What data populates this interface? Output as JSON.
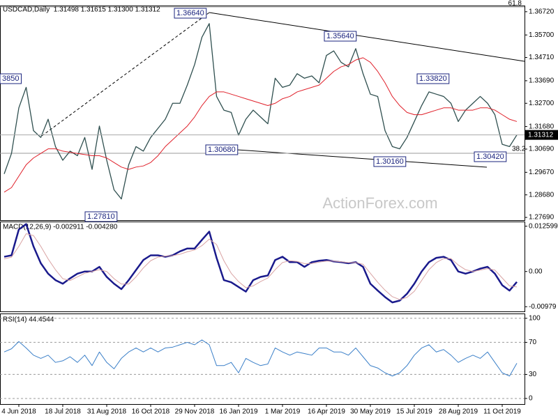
{
  "chart_data": [
    {
      "type": "line",
      "title": "USDCAD,Daily  1.31498 1.31615 1.31300 1.31312",
      "ylim": [
        1.2757,
        1.3699
      ],
      "yticks": [
        {
          "value": 1.3672,
          "label": "1.36720"
        },
        {
          "value": 1.357,
          "label": "1.35700"
        },
        {
          "value": 1.3471,
          "label": "1.34710"
        },
        {
          "value": 1.3369,
          "label": "1.33690"
        },
        {
          "value": 1.327,
          "label": "1.32700"
        },
        {
          "value": 1.3168,
          "label": "1.31680"
        },
        {
          "value": 1.3069,
          "label": "1.30690"
        },
        {
          "value": 1.2967,
          "label": "1.29670"
        },
        {
          "value": 1.2868,
          "label": "1.28680"
        },
        {
          "value": 1.2769,
          "label": "1.27690"
        }
      ],
      "last_price": {
        "value": 1.31312,
        "label": "1.31312"
      },
      "annotations": [
        "1.36640",
        "1.35640",
        "1.33820",
        "3850",
        "1.30680",
        "1.30160",
        "1.30420",
        "1.27810"
      ],
      "fib_labels": [
        "61.8",
        "38.2"
      ],
      "watermark": "ActionForex.com",
      "series": [
        {
          "color": "#2f4f4f",
          "values": [
            1.296,
            1.305,
            1.325,
            1.334,
            1.315,
            1.312,
            1.32,
            1.308,
            1.302,
            1.306,
            1.304,
            1.312,
            1.298,
            1.317,
            1.302,
            1.289,
            1.285,
            1.3,
            1.308,
            1.306,
            1.312,
            1.316,
            1.32,
            1.327,
            1.327,
            1.335,
            1.344,
            1.356,
            1.362,
            1.33,
            1.324,
            1.323,
            1.313,
            1.32,
            1.324,
            1.321,
            1.318,
            1.338,
            1.334,
            1.335,
            1.34,
            1.338,
            1.339,
            1.336,
            1.348,
            1.35,
            1.345,
            1.343,
            1.351,
            1.34,
            1.331,
            1.33,
            1.315,
            1.308,
            1.307,
            1.312,
            1.319,
            1.326,
            1.332,
            1.331,
            1.33,
            1.327,
            1.319,
            1.324,
            1.327,
            1.33,
            1.327,
            1.322,
            1.309,
            1.308,
            1.3131
          ]
        },
        {
          "color": "#e0202a",
          "values": [
            1.288,
            1.29,
            1.295,
            1.3,
            1.303,
            1.305,
            1.307,
            1.307,
            1.306,
            1.3055,
            1.305,
            1.3045,
            1.304,
            1.304,
            1.303,
            1.301,
            1.299,
            1.298,
            1.299,
            1.2995,
            1.301,
            1.304,
            1.308,
            1.311,
            1.314,
            1.317,
            1.321,
            1.326,
            1.33,
            1.332,
            1.332,
            1.331,
            1.33,
            1.329,
            1.328,
            1.327,
            1.326,
            1.327,
            1.329,
            1.33,
            1.332,
            1.333,
            1.334,
            1.335,
            1.338,
            1.341,
            1.343,
            1.344,
            1.346,
            1.347,
            1.345,
            1.341,
            1.336,
            1.33,
            1.326,
            1.323,
            1.322,
            1.322,
            1.323,
            1.324,
            1.325,
            1.325,
            1.324,
            1.324,
            1.324,
            1.325,
            1.325,
            1.324,
            1.322,
            1.32,
            1.319
          ]
        }
      ]
    },
    {
      "type": "line",
      "title": "MACD(12,26,9) -0.002911 -0.004280",
      "ylim": [
        -0.0111,
        0.0139
      ],
      "yticks": [
        0.012599,
        {
          "value": 0,
          "label": "0.00"
        },
        -0.00979
      ],
      "series": [
        {
          "color": "#1a1a8c",
          "values": [
            0.0041,
            0.0045,
            0.0117,
            0.0132,
            0.007,
            0.0023,
            -0.0006,
            -0.0024,
            -0.0034,
            -0.0019,
            -0.0006,
            0,
            0,
            0.0013,
            -0.0015,
            -0.0034,
            -0.0049,
            -0.0024,
            0.0004,
            0.0032,
            0.0045,
            0.0045,
            0.0041,
            0.0045,
            0.0056,
            0.0064,
            0.0064,
            0.0088,
            0.0111,
            0.0038,
            -0.0024,
            -0.003,
            -0.0043,
            -0.0056,
            -0.0024,
            -0.0015,
            -0.0011,
            0.0032,
            0.0041,
            0.0026,
            0.0026,
            0.0013,
            0.0026,
            0.003,
            0.0032,
            0.0028,
            0.0026,
            0.0023,
            0.0026,
            0.0013,
            -0.0034,
            -0.0053,
            -0.0071,
            -0.0086,
            -0.0081,
            -0.0062,
            -0.0034,
            0,
            0.0026,
            0.0038,
            0.0041,
            0.0032,
            0,
            -0.0006,
            0,
            0.0008,
            0.0013,
            -0.0006,
            -0.0038,
            -0.0053,
            -0.0029
          ]
        },
        {
          "color": "#d9a3a3",
          "values": [
            0.0035,
            0.004,
            0.007,
            0.0105,
            0.01,
            0.007,
            0.0035,
            0.0005,
            -0.002,
            -0.0025,
            -0.0015,
            -0.0005,
            0,
            0.0005,
            0,
            -0.002,
            -0.0035,
            -0.0035,
            -0.0015,
            0.001,
            0.003,
            0.004,
            0.0043,
            0.0044,
            0.0048,
            0.0055,
            0.006,
            0.0072,
            0.009,
            0.0075,
            0.003,
            -0.0005,
            -0.0028,
            -0.0045,
            -0.004,
            -0.0028,
            -0.0018,
            0.0005,
            0.0025,
            0.003,
            0.0028,
            0.0022,
            0.0022,
            0.0026,
            0.0029,
            0.0029,
            0.0027,
            0.0025,
            0.0025,
            0.002,
            -0.0005,
            -0.003,
            -0.0052,
            -0.007,
            -0.0078,
            -0.0072,
            -0.0055,
            -0.0025,
            0.0005,
            0.0025,
            0.0036,
            0.0036,
            0.0018,
            0.0005,
            0,
            0.0004,
            0.0008,
            0.0004,
            -0.0018,
            -0.004,
            -0.0043
          ]
        }
      ]
    },
    {
      "type": "line",
      "title": "RSI(14) 44.4544",
      "ylim": [
        -7,
        106
      ],
      "yticks": [
        100,
        70,
        30,
        0
      ],
      "grid": "dashed",
      "categories": [
        null,
        null,
        "4 Jun 2018",
        null,
        null,
        null,
        null,
        null,
        "18 Jul 2018",
        null,
        null,
        null,
        null,
        null,
        "31 Aug 2018",
        null,
        null,
        null,
        null,
        null,
        "16 Oct 2018",
        null,
        null,
        null,
        null,
        null,
        "29 Nov 2018",
        null,
        null,
        null,
        null,
        null,
        "16 Jan 2019",
        null,
        null,
        null,
        null,
        null,
        "1 Mar 2019",
        null,
        null,
        null,
        null,
        null,
        "16 Apr 2019",
        null,
        null,
        null,
        null,
        null,
        "30 May 2019",
        null,
        null,
        null,
        null,
        null,
        "15 Jul 2019",
        null,
        null,
        null,
        null,
        null,
        "28 Aug 2019",
        null,
        null,
        null,
        null,
        null,
        "11 Oct 2019",
        null,
        null
      ],
      "series": [
        {
          "color": "#3a7fc8",
          "values": [
            58,
            62,
            71,
            63,
            54,
            50,
            54,
            45,
            47,
            52,
            45,
            54,
            41,
            58,
            45,
            37,
            50,
            58,
            63,
            58,
            63,
            58,
            63,
            64,
            67,
            70,
            67,
            73,
            67,
            41,
            41,
            45,
            32,
            50,
            45,
            41,
            43,
            63,
            58,
            54,
            58,
            56,
            54,
            63,
            63,
            58,
            58,
            54,
            63,
            52,
            41,
            38,
            32,
            28,
            32,
            41,
            54,
            63,
            67,
            58,
            61,
            54,
            45,
            50,
            54,
            50,
            58,
            45,
            32,
            28,
            44
          ]
        }
      ]
    }
  ]
}
